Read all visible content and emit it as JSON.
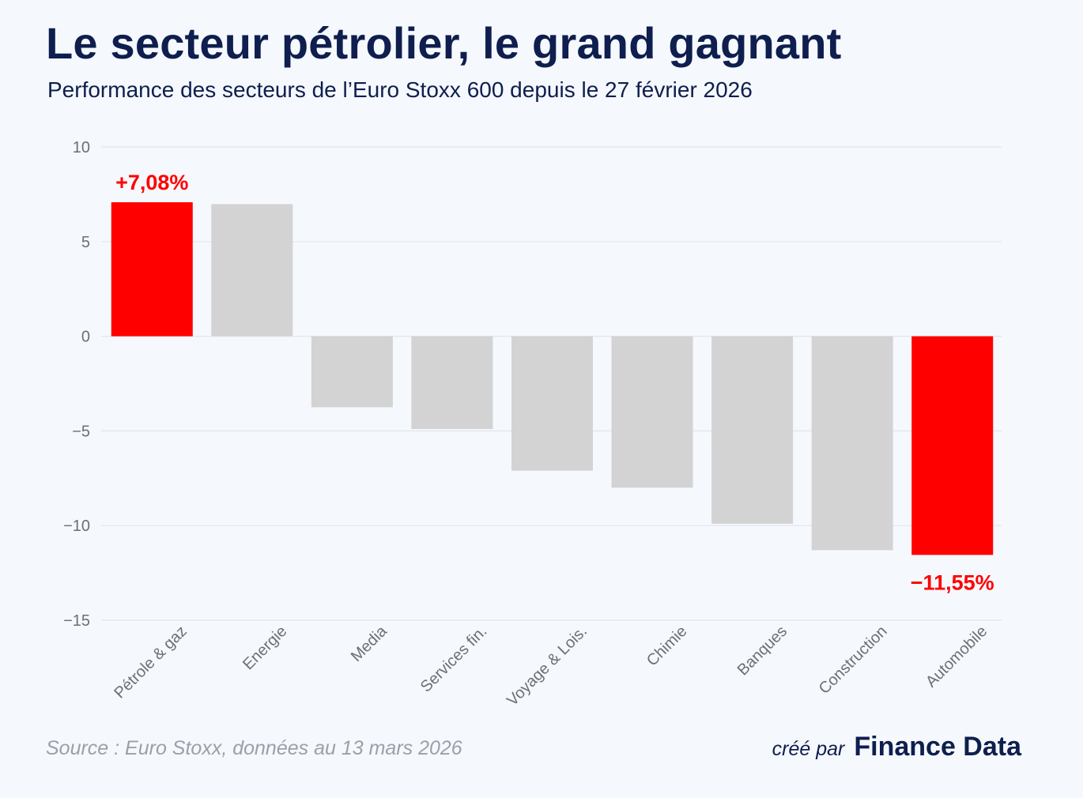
{
  "header": {
    "title": "Le secteur pétrolier, le grand gagnant",
    "subtitle": "Performance des secteurs de l’Euro Stoxx 600 depuis le 27 février 2026"
  },
  "footer": {
    "source": "Source : Euro Stoxx, données au 13 mars 2026",
    "credit_prefix": "créé par",
    "credit_brand": "Finance Data"
  },
  "colors": {
    "highlight": "#ff0000",
    "bar": "#d3d3d3",
    "grid": "#e2e6ec",
    "tick": "#6b6f76"
  },
  "chart_data": {
    "type": "bar",
    "title": "Le secteur pétrolier, le grand gagnant",
    "subtitle": "Performance des secteurs de l’Euro Stoxx 600 depuis le 27 février 2026",
    "xlabel": "",
    "ylabel": "",
    "ylim": [
      -15,
      10
    ],
    "yticks": [
      10,
      5,
      0,
      -5,
      -10,
      -15
    ],
    "ytick_labels": [
      "10",
      "5",
      "0",
      "−5",
      "−10",
      "−15"
    ],
    "grid": true,
    "categories": [
      "Pétrole & gaz",
      "Energie",
      "Media",
      "Services fin.",
      "Voyage & Lois.",
      "Chimie",
      "Banques",
      "Construction",
      "Automobile"
    ],
    "values": [
      7.08,
      6.98,
      -3.75,
      -4.9,
      -7.1,
      -8.0,
      -9.9,
      -11.3,
      -11.55
    ],
    "highlighted": [
      true,
      false,
      false,
      false,
      false,
      false,
      false,
      false,
      true
    ],
    "annotations": [
      {
        "category": "Pétrole & gaz",
        "text": "+7,08%"
      },
      {
        "category": "Automobile",
        "text": "−11,55%"
      }
    ]
  }
}
